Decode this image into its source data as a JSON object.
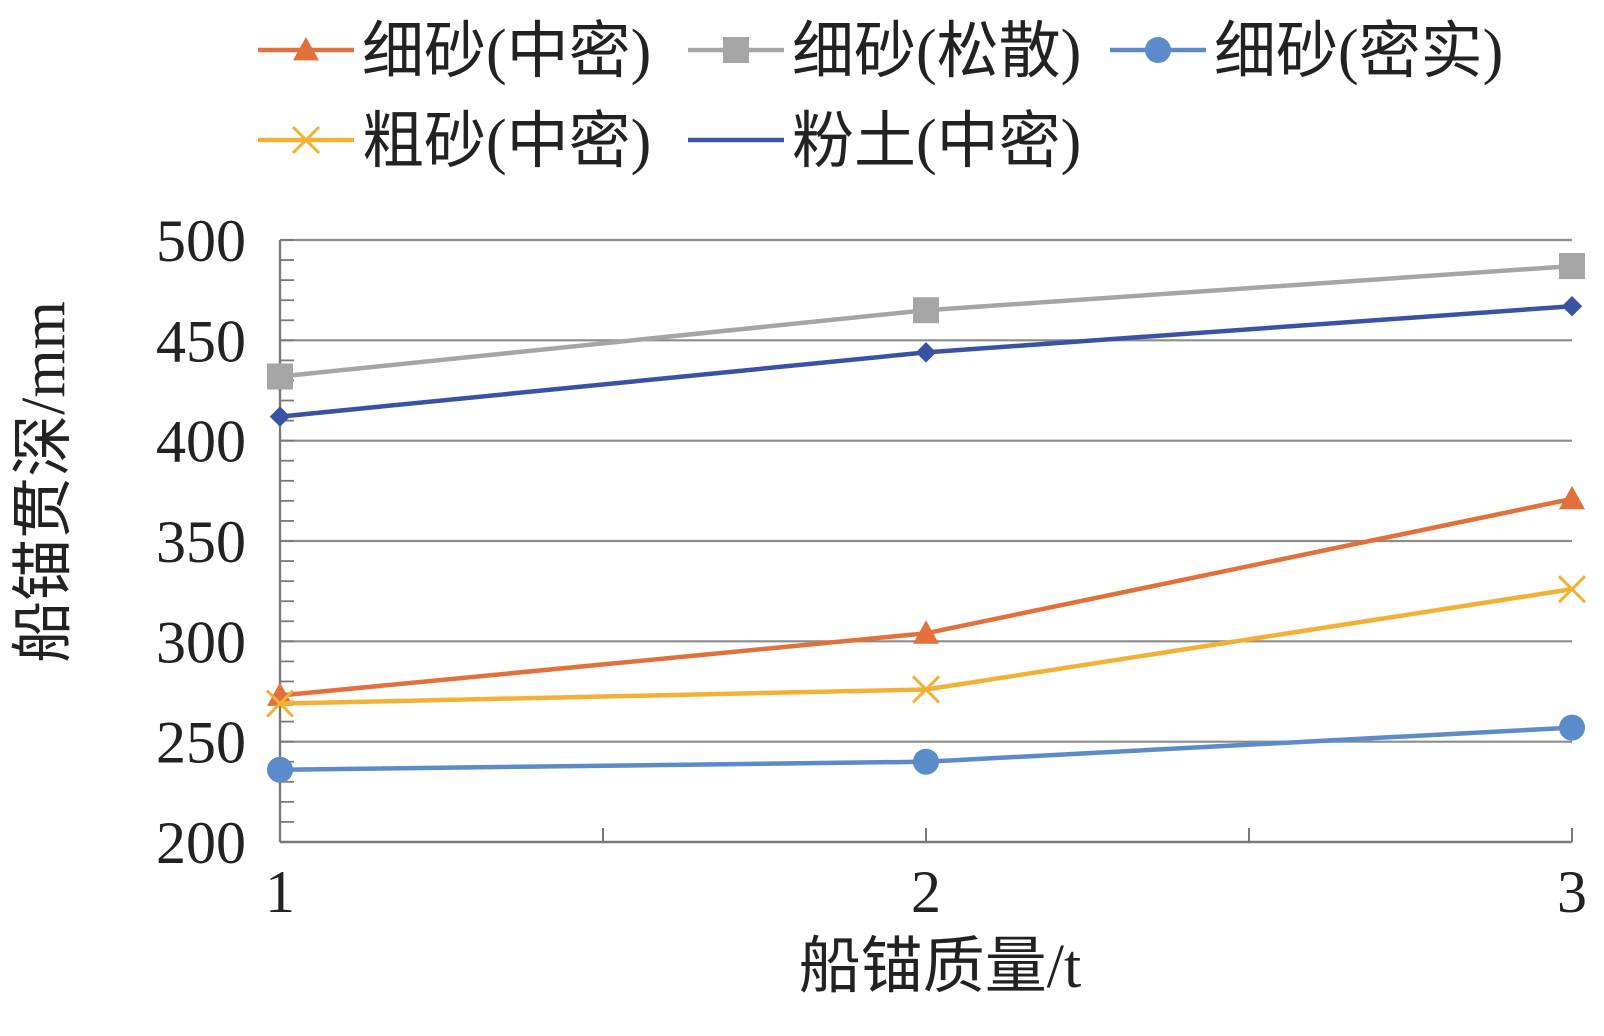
{
  "chart_data": {
    "type": "line",
    "xlabel": "船锚质量/t",
    "ylabel": "船锚贯深/mm",
    "x": [
      1,
      2,
      3
    ],
    "xlim": [
      1,
      3
    ],
    "ylim": [
      200,
      500
    ],
    "yticks": [
      200,
      250,
      300,
      350,
      400,
      450,
      500
    ],
    "xticks": [
      1,
      2,
      3
    ],
    "grid": true,
    "legend_position": "top",
    "series": [
      {
        "name": "细砂(中密)",
        "values": [
          273,
          304,
          371
        ],
        "color": "#E2703A",
        "marker": "triangle"
      },
      {
        "name": "细砂(松散)",
        "values": [
          432,
          465,
          487
        ],
        "color": "#A5A5A5",
        "marker": "square"
      },
      {
        "name": "细砂(密实)",
        "values": [
          236,
          240,
          257
        ],
        "color": "#5B8BC9",
        "marker": "circle"
      },
      {
        "name": "粗砂(中密)",
        "values": [
          269,
          276,
          326
        ],
        "color": "#F2B134",
        "marker": "x"
      },
      {
        "name": "粉土(中密)",
        "values": [
          412,
          444,
          467
        ],
        "color": "#3A52A6",
        "marker": "diamond"
      }
    ]
  }
}
